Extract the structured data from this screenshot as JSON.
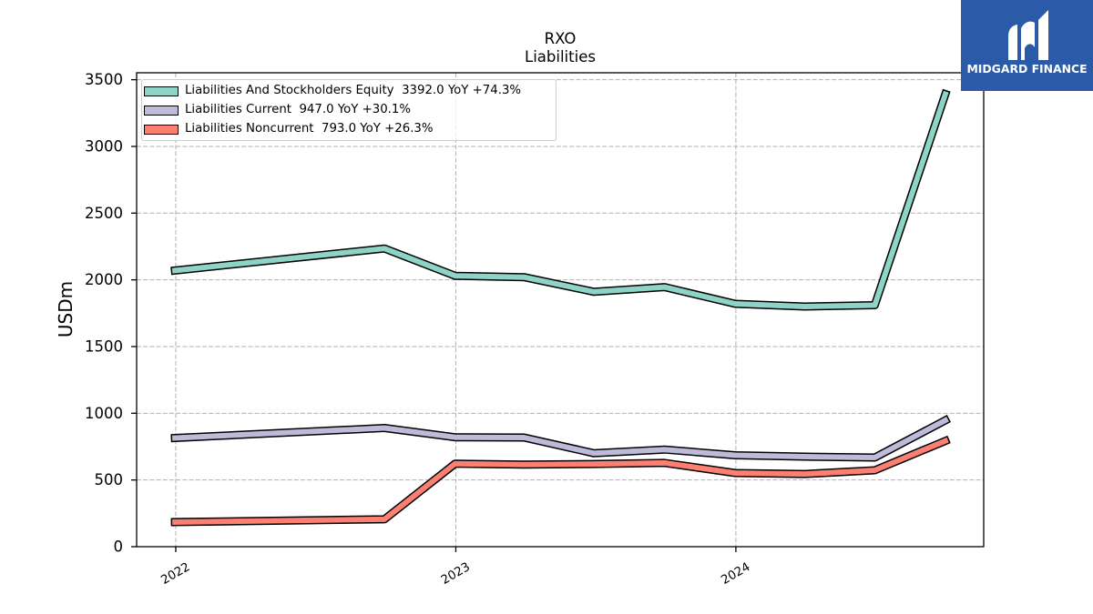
{
  "brand": {
    "name": "MIDGARD FINANCE",
    "color": "#2b5ba8",
    "logo_icon": "midgard-finance-logo"
  },
  "chart_data": {
    "type": "line",
    "title": "RXO",
    "subtitle": "Liabilities",
    "ylabel": "USDm",
    "x": [
      "2021-12-31",
      "2022-09-30",
      "2022-12-31",
      "2023-03-31",
      "2023-06-30",
      "2023-09-30",
      "2023-12-31",
      "2024-03-31",
      "2024-06-30",
      "2024-09-30"
    ],
    "xlim": [
      "2021-11-11",
      "2024-11-19"
    ],
    "ylim": [
      0,
      3552
    ],
    "x_ticks": [
      "2022",
      "2023",
      "2024"
    ],
    "y_ticks": [
      0,
      500,
      1000,
      1500,
      2000,
      2500,
      3000,
      3500
    ],
    "grid": true,
    "legend_position": "upper-left",
    "series": [
      {
        "name": "Liabilities And Stockholders Equity",
        "annotation": "3392.0 YoY +74.3%",
        "color": "#8dd3c7",
        "values": [
          2070,
          2235,
          2030,
          2020,
          1910,
          1946,
          1820,
          1800,
          1810,
          3392
        ]
      },
      {
        "name": "Liabilities Current",
        "annotation": "947.0 YoY +30.1%",
        "color": "#bebada",
        "values": [
          815,
          890,
          820,
          818,
          700,
          728,
          685,
          675,
          668,
          947
        ]
      },
      {
        "name": "Liabilities Noncurrent",
        "annotation": "793.0 YoY +26.3%",
        "color": "#fb8072",
        "values": [
          185,
          205,
          622,
          615,
          620,
          628,
          552,
          545,
          573,
          793
        ]
      }
    ]
  }
}
